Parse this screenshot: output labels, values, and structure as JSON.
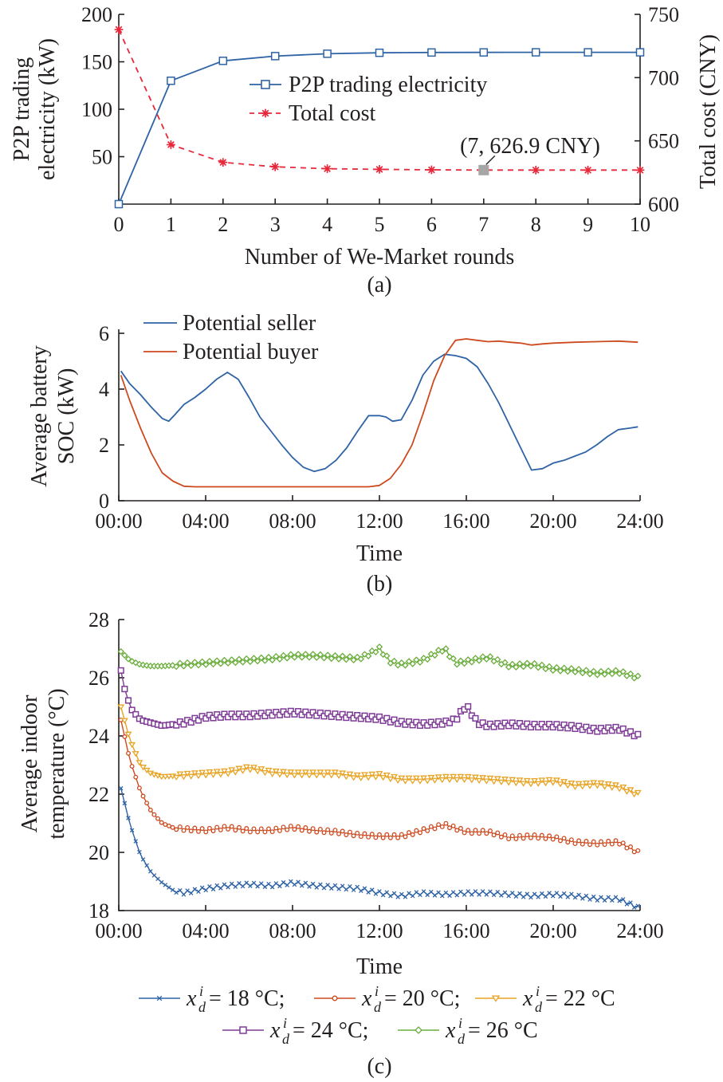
{
  "chart_data": [
    {
      "type": "line",
      "panel_label": "(a)",
      "xlabel": "Number of We-Market rounds",
      "ylabel_left_lines": [
        "P2P trading",
        "electricity (kW)"
      ],
      "ylabel_right": "Total cost (CNY)",
      "xlim": [
        0,
        10
      ],
      "ylim_left": [
        0,
        200
      ],
      "ylim_right": [
        600,
        750
      ],
      "xticks": [
        "0",
        "1",
        "2",
        "3",
        "4",
        "5",
        "6",
        "7",
        "8",
        "9",
        "10"
      ],
      "yticks_left": [
        "50",
        "100",
        "150",
        "200"
      ],
      "yticks_right": [
        "600",
        "650",
        "700",
        "750"
      ],
      "x": [
        0,
        1,
        2,
        3,
        4,
        5,
        6,
        7,
        8,
        9,
        10
      ],
      "series": [
        {
          "name": "P2P trading electricity",
          "axis": "left",
          "color": "#2e63a6",
          "marker": "square",
          "dash": "solid",
          "values": [
            0,
            130,
            151,
            156,
            158.5,
            159.5,
            159.8,
            159.9,
            160,
            160,
            160
          ]
        },
        {
          "name": "Total cost",
          "axis": "right",
          "color": "#e8283a",
          "marker": "asterisk",
          "dash": "dashed",
          "values": [
            738,
            647,
            633,
            629.5,
            628,
            627.5,
            627.1,
            626.9,
            626.9,
            626.9,
            626.9
          ]
        }
      ],
      "annotation": {
        "text": "(7, 626.9 CNY)",
        "x": 7,
        "y": 626.9,
        "axis": "right"
      }
    },
    {
      "type": "line",
      "panel_label": "(b)",
      "xlabel": "Time",
      "ylabel_lines": [
        "Average battery",
        "SOC (kW)"
      ],
      "xlim": [
        0,
        24
      ],
      "ylim": [
        0,
        6
      ],
      "xticks": [
        "00:00",
        "04:00",
        "08:00",
        "12:00",
        "16:00",
        "20:00",
        "24:00"
      ],
      "yticks": [
        "0",
        "2",
        "4",
        "6"
      ],
      "series": [
        {
          "name": "Potential seller",
          "color": "#2e63a6",
          "x": [
            0.1,
            0.5,
            1,
            1.5,
            2,
            2.3,
            2.6,
            3,
            3.5,
            4,
            4.5,
            5,
            5.5,
            6,
            6.5,
            7,
            7.5,
            8,
            8.5,
            9,
            9.5,
            10,
            10.5,
            11,
            11.5,
            12,
            12.3,
            12.6,
            13,
            13.5,
            14,
            14.5,
            15,
            15.5,
            16,
            16.5,
            17,
            17.5,
            18,
            18.5,
            19,
            19.5,
            20,
            20.5,
            21,
            21.5,
            22,
            22.5,
            23,
            23.5,
            23.9
          ],
          "values": [
            4.65,
            4.2,
            3.8,
            3.35,
            2.95,
            2.85,
            3.1,
            3.45,
            3.7,
            4.0,
            4.35,
            4.6,
            4.35,
            3.7,
            3.0,
            2.5,
            2.0,
            1.55,
            1.2,
            1.05,
            1.15,
            1.45,
            1.9,
            2.5,
            3.05,
            3.05,
            3.0,
            2.85,
            2.9,
            3.6,
            4.5,
            5.0,
            5.25,
            5.2,
            5.1,
            4.8,
            4.2,
            3.5,
            2.7,
            1.9,
            1.1,
            1.15,
            1.35,
            1.45,
            1.6,
            1.75,
            2.0,
            2.3,
            2.55,
            2.6,
            2.65
          ]
        },
        {
          "name": "Potential buyer",
          "color": "#cd4a1f",
          "x": [
            0.1,
            0.5,
            1,
            1.5,
            2,
            2.5,
            3,
            3.5,
            4,
            6,
            8,
            10,
            11,
            11.5,
            12,
            12.5,
            13,
            13.5,
            14,
            14.5,
            15,
            15.5,
            16,
            16.5,
            17,
            17.5,
            18,
            18.5,
            19,
            19.5,
            20,
            21,
            22,
            23,
            23.9
          ],
          "values": [
            4.5,
            3.6,
            2.6,
            1.7,
            1.0,
            0.7,
            0.52,
            0.5,
            0.5,
            0.5,
            0.5,
            0.5,
            0.5,
            0.5,
            0.55,
            0.8,
            1.3,
            2.0,
            3.1,
            4.3,
            5.2,
            5.75,
            5.8,
            5.75,
            5.7,
            5.72,
            5.68,
            5.65,
            5.58,
            5.62,
            5.65,
            5.68,
            5.7,
            5.72,
            5.68
          ]
        }
      ]
    },
    {
      "type": "line",
      "panel_label": "(c)",
      "xlabel": "Time",
      "ylabel_lines": [
        "Average indoor",
        "temperature (°C)"
      ],
      "xlim": [
        0,
        24
      ],
      "ylim": [
        18,
        28
      ],
      "xticks": [
        "00:00",
        "04:00",
        "08:00",
        "12:00",
        "16:00",
        "20:00",
        "24:00"
      ],
      "yticks": [
        "18",
        "20",
        "22",
        "24",
        "26",
        "28"
      ],
      "series": [
        {
          "name": "x_d^i = 18 °C",
          "legend_value": "= 18 °C;",
          "color": "#2e63a6",
          "marker": "x",
          "x": [
            0.1,
            0.5,
            1,
            1.5,
            2,
            2.5,
            3,
            4,
            5,
            6,
            7,
            8,
            9,
            10,
            11,
            12,
            13,
            14,
            15,
            16,
            17,
            18,
            19,
            20,
            21,
            22,
            23,
            23.9
          ],
          "values": [
            22.2,
            21.0,
            19.9,
            19.3,
            18.95,
            18.7,
            18.6,
            18.75,
            18.85,
            18.9,
            18.85,
            18.95,
            18.85,
            18.8,
            18.75,
            18.6,
            18.5,
            18.6,
            18.55,
            18.6,
            18.6,
            18.55,
            18.5,
            18.55,
            18.5,
            18.4,
            18.4,
            18.1
          ]
        },
        {
          "name": "x_d^i = 20 °C",
          "legend_value": "= 20 °C;",
          "color": "#cd4a1f",
          "marker": "circle",
          "x": [
            0.1,
            0.5,
            1,
            1.5,
            2,
            2.5,
            3,
            4,
            5,
            6,
            7,
            8,
            9,
            10,
            11,
            12,
            13,
            14,
            15,
            16,
            17,
            18,
            19,
            20,
            21,
            22,
            23,
            23.9
          ],
          "values": [
            24.55,
            23.2,
            22.1,
            21.4,
            21.0,
            20.85,
            20.8,
            20.75,
            20.85,
            20.75,
            20.75,
            20.85,
            20.75,
            20.7,
            20.6,
            20.55,
            20.55,
            20.75,
            20.95,
            20.7,
            20.7,
            20.5,
            20.55,
            20.5,
            20.35,
            20.3,
            20.35,
            20.0
          ]
        },
        {
          "name": "x_d^i = 22 °C",
          "legend_value": "= 22 °C",
          "color": "#e8a323",
          "marker": "triangle-down",
          "x": [
            0.1,
            0.5,
            1,
            1.5,
            2,
            3,
            4,
            5,
            6,
            7,
            8,
            9,
            10,
            11,
            12,
            13,
            14,
            15,
            16,
            17,
            18,
            19,
            20,
            21,
            22,
            23,
            23.9
          ],
          "values": [
            25.0,
            23.9,
            23.0,
            22.7,
            22.6,
            22.65,
            22.7,
            22.75,
            22.9,
            22.75,
            22.7,
            22.7,
            22.7,
            22.6,
            22.65,
            22.5,
            22.5,
            22.55,
            22.55,
            22.5,
            22.45,
            22.4,
            22.45,
            22.3,
            22.35,
            22.25,
            22.0
          ]
        },
        {
          "name": "x_d^i = 24 °C",
          "legend_value": "= 24 °C;",
          "color": "#7d3a96",
          "marker": "square",
          "x": [
            0.1,
            0.3,
            0.6,
            1,
            1.5,
            2,
            3,
            4,
            5,
            6,
            7,
            8,
            9,
            10,
            11,
            12,
            13,
            14,
            15,
            15.5,
            16,
            16.5,
            17,
            18,
            19,
            20,
            21,
            22,
            23,
            23.9
          ],
          "values": [
            26.25,
            25.5,
            24.9,
            24.55,
            24.45,
            24.35,
            24.45,
            24.65,
            24.7,
            24.7,
            24.75,
            24.8,
            24.75,
            24.7,
            24.65,
            24.6,
            24.45,
            24.4,
            24.45,
            24.55,
            25.05,
            24.45,
            24.35,
            24.4,
            24.35,
            24.35,
            24.3,
            24.2,
            24.25,
            24.0
          ]
        },
        {
          "name": "x_d^i = 26 °C",
          "legend_value": "= 26 °C",
          "color": "#6aad3c",
          "marker": "diamond",
          "x": [
            0.1,
            0.5,
            1,
            1.5,
            2,
            3,
            4,
            5,
            6,
            7,
            8,
            9,
            10,
            11,
            11.5,
            12,
            12.5,
            13,
            14,
            15,
            15.5,
            16,
            17,
            18,
            19,
            20,
            21,
            22,
            23,
            23.9
          ],
          "values": [
            26.9,
            26.6,
            26.45,
            26.4,
            26.4,
            26.45,
            26.5,
            26.55,
            26.6,
            26.65,
            26.75,
            26.75,
            26.7,
            26.65,
            26.8,
            27.0,
            26.55,
            26.45,
            26.6,
            27.0,
            26.5,
            26.55,
            26.7,
            26.4,
            26.45,
            26.3,
            26.25,
            26.15,
            26.2,
            26.0
          ]
        }
      ]
    }
  ]
}
